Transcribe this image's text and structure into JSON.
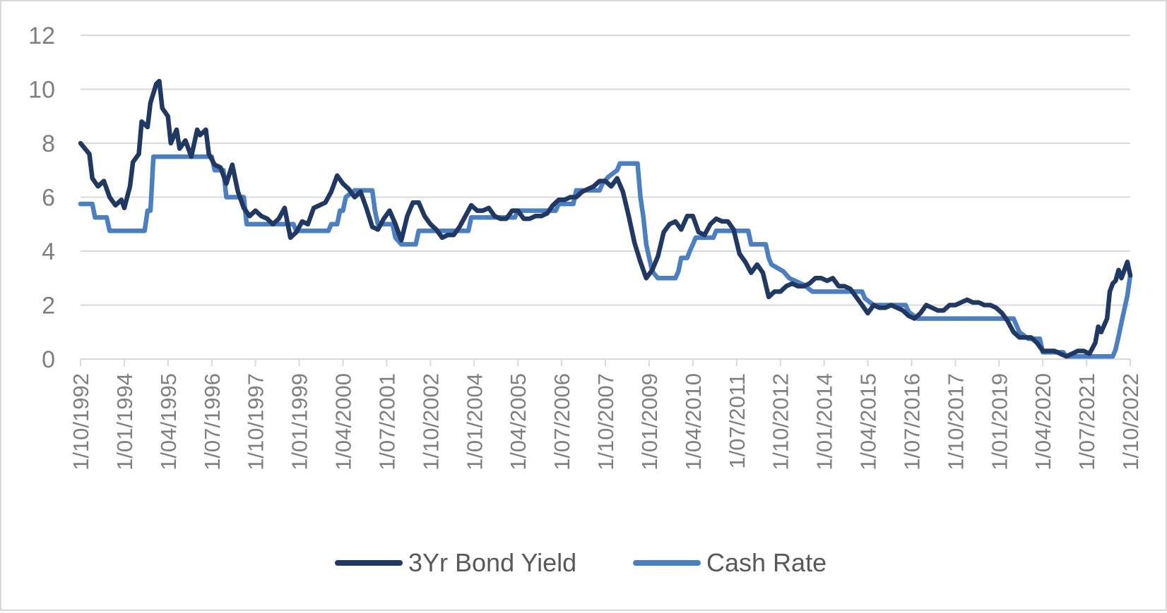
{
  "chart_data": {
    "type": "line",
    "title": "",
    "xlabel": "",
    "ylabel": "",
    "x_range": [
      "1992-10-01",
      "2022-10-01"
    ],
    "ylim": [
      0,
      12
    ],
    "y_ticks": [
      "0",
      "2",
      "4",
      "6",
      "8",
      "10",
      "12"
    ],
    "x_tick_labels": [
      "1/10/1992",
      "1/01/1994",
      "1/04/1995",
      "1/07/1996",
      "1/10/1997",
      "1/01/1999",
      "1/04/2000",
      "1/07/2001",
      "1/10/2002",
      "1/01/2004",
      "1/04/2005",
      "1/07/2006",
      "1/10/2007",
      "1/01/2009",
      "1/04/2010",
      "1/07/2011",
      "1/10/2012",
      "1/01/2014",
      "1/04/2015",
      "1/07/2016",
      "1/10/2017",
      "1/01/2019",
      "1/04/2020",
      "1/07/2021",
      "1/10/2022"
    ],
    "grid": true,
    "legend_position": "bottom",
    "series": [
      {
        "name": "3Yr Bond Yield",
        "color": "#1f3864",
        "points": [
          [
            "1992-10-01",
            8.0
          ],
          [
            "1993-01-01",
            7.6
          ],
          [
            "1993-02-01",
            6.7
          ],
          [
            "1993-04-01",
            6.4
          ],
          [
            "1993-06-01",
            6.6
          ],
          [
            "1993-08-01",
            6.0
          ],
          [
            "1993-10-01",
            5.7
          ],
          [
            "1993-12-01",
            5.9
          ],
          [
            "1994-01-01",
            5.6
          ],
          [
            "1994-03-01",
            6.4
          ],
          [
            "1994-04-01",
            7.3
          ],
          [
            "1994-06-01",
            7.6
          ],
          [
            "1994-07-01",
            8.8
          ],
          [
            "1994-09-01",
            8.6
          ],
          [
            "1994-10-01",
            9.5
          ],
          [
            "1994-12-01",
            10.2
          ],
          [
            "1995-01-01",
            10.3
          ],
          [
            "1995-02-01",
            9.3
          ],
          [
            "1995-04-01",
            9.0
          ],
          [
            "1995-05-01",
            8.0
          ],
          [
            "1995-07-01",
            8.5
          ],
          [
            "1995-08-01",
            7.8
          ],
          [
            "1995-10-01",
            8.1
          ],
          [
            "1995-12-01",
            7.5
          ],
          [
            "1996-02-01",
            8.5
          ],
          [
            "1996-03-01",
            8.3
          ],
          [
            "1996-05-01",
            8.5
          ],
          [
            "1996-06-01",
            7.6
          ],
          [
            "1996-08-01",
            7.2
          ],
          [
            "1996-10-01",
            7.1
          ],
          [
            "1996-12-01",
            6.5
          ],
          [
            "1997-02-01",
            7.2
          ],
          [
            "1997-04-01",
            6.2
          ],
          [
            "1997-06-01",
            5.6
          ],
          [
            "1997-08-01",
            5.3
          ],
          [
            "1997-10-01",
            5.5
          ],
          [
            "1997-12-01",
            5.3
          ],
          [
            "1998-02-01",
            5.2
          ],
          [
            "1998-04-01",
            5.0
          ],
          [
            "1998-06-01",
            5.2
          ],
          [
            "1998-08-01",
            5.6
          ],
          [
            "1998-10-01",
            4.5
          ],
          [
            "1998-12-01",
            4.7
          ],
          [
            "1999-02-01",
            5.1
          ],
          [
            "1999-04-01",
            5.0
          ],
          [
            "1999-06-01",
            5.6
          ],
          [
            "1999-08-01",
            5.7
          ],
          [
            "1999-10-01",
            5.8
          ],
          [
            "1999-12-01",
            6.2
          ],
          [
            "2000-02-01",
            6.8
          ],
          [
            "2000-04-01",
            6.5
          ],
          [
            "2000-06-01",
            6.3
          ],
          [
            "2000-08-01",
            6.0
          ],
          [
            "2000-10-01",
            6.2
          ],
          [
            "2000-12-01",
            5.6
          ],
          [
            "2001-02-01",
            4.9
          ],
          [
            "2001-04-01",
            4.8
          ],
          [
            "2001-06-01",
            5.2
          ],
          [
            "2001-08-01",
            5.5
          ],
          [
            "2001-10-01",
            5.0
          ],
          [
            "2001-12-01",
            4.4
          ],
          [
            "2002-02-01",
            5.3
          ],
          [
            "2002-04-01",
            5.8
          ],
          [
            "2002-06-01",
            5.8
          ],
          [
            "2002-08-01",
            5.3
          ],
          [
            "2002-10-01",
            5.0
          ],
          [
            "2002-12-01",
            4.8
          ],
          [
            "2003-02-01",
            4.5
          ],
          [
            "2003-04-01",
            4.6
          ],
          [
            "2003-06-01",
            4.6
          ],
          [
            "2003-08-01",
            4.9
          ],
          [
            "2003-10-01",
            5.3
          ],
          [
            "2003-12-01",
            5.7
          ],
          [
            "2004-02-01",
            5.5
          ],
          [
            "2004-04-01",
            5.5
          ],
          [
            "2004-06-01",
            5.6
          ],
          [
            "2004-08-01",
            5.3
          ],
          [
            "2004-10-01",
            5.2
          ],
          [
            "2004-12-01",
            5.2
          ],
          [
            "2005-02-01",
            5.5
          ],
          [
            "2005-04-01",
            5.5
          ],
          [
            "2005-06-01",
            5.2
          ],
          [
            "2005-08-01",
            5.2
          ],
          [
            "2005-10-01",
            5.3
          ],
          [
            "2005-12-01",
            5.3
          ],
          [
            "2006-02-01",
            5.4
          ],
          [
            "2006-04-01",
            5.7
          ],
          [
            "2006-06-01",
            5.9
          ],
          [
            "2006-08-01",
            5.9
          ],
          [
            "2006-10-01",
            6.0
          ],
          [
            "2006-12-01",
            6.0
          ],
          [
            "2007-02-01",
            6.2
          ],
          [
            "2007-04-01",
            6.3
          ],
          [
            "2007-06-01",
            6.4
          ],
          [
            "2007-08-01",
            6.6
          ],
          [
            "2007-10-01",
            6.6
          ],
          [
            "2007-12-01",
            6.4
          ],
          [
            "2008-02-01",
            6.7
          ],
          [
            "2008-04-01",
            6.2
          ],
          [
            "2008-06-01",
            5.3
          ],
          [
            "2008-08-01",
            4.3
          ],
          [
            "2008-10-01",
            3.6
          ],
          [
            "2008-12-01",
            3.0
          ],
          [
            "2009-02-01",
            3.3
          ],
          [
            "2009-04-01",
            3.8
          ],
          [
            "2009-06-01",
            4.7
          ],
          [
            "2009-08-01",
            5.0
          ],
          [
            "2009-10-01",
            5.1
          ],
          [
            "2009-12-01",
            4.8
          ],
          [
            "2010-02-01",
            5.3
          ],
          [
            "2010-04-01",
            5.3
          ],
          [
            "2010-06-01",
            4.7
          ],
          [
            "2010-08-01",
            4.6
          ],
          [
            "2010-10-01",
            5.0
          ],
          [
            "2010-12-01",
            5.2
          ],
          [
            "2011-02-01",
            5.1
          ],
          [
            "2011-04-01",
            5.1
          ],
          [
            "2011-06-01",
            4.8
          ],
          [
            "2011-08-01",
            3.9
          ],
          [
            "2011-10-01",
            3.6
          ],
          [
            "2011-12-01",
            3.2
          ],
          [
            "2012-02-01",
            3.5
          ],
          [
            "2012-04-01",
            3.2
          ],
          [
            "2012-06-01",
            2.3
          ],
          [
            "2012-08-01",
            2.5
          ],
          [
            "2012-10-01",
            2.5
          ],
          [
            "2012-12-01",
            2.7
          ],
          [
            "2013-02-01",
            2.8
          ],
          [
            "2013-04-01",
            2.7
          ],
          [
            "2013-06-01",
            2.7
          ],
          [
            "2013-08-01",
            2.8
          ],
          [
            "2013-10-01",
            3.0
          ],
          [
            "2013-12-01",
            3.0
          ],
          [
            "2014-02-01",
            2.9
          ],
          [
            "2014-04-01",
            3.0
          ],
          [
            "2014-06-01",
            2.7
          ],
          [
            "2014-08-01",
            2.7
          ],
          [
            "2014-10-01",
            2.6
          ],
          [
            "2014-12-01",
            2.3
          ],
          [
            "2015-02-01",
            2.0
          ],
          [
            "2015-04-01",
            1.7
          ],
          [
            "2015-06-01",
            2.0
          ],
          [
            "2015-08-01",
            1.9
          ],
          [
            "2015-10-01",
            1.9
          ],
          [
            "2015-12-01",
            2.0
          ],
          [
            "2016-02-01",
            1.9
          ],
          [
            "2016-04-01",
            1.8
          ],
          [
            "2016-06-01",
            1.6
          ],
          [
            "2016-08-01",
            1.5
          ],
          [
            "2016-10-01",
            1.7
          ],
          [
            "2016-12-01",
            2.0
          ],
          [
            "2017-02-01",
            1.9
          ],
          [
            "2017-04-01",
            1.8
          ],
          [
            "2017-06-01",
            1.8
          ],
          [
            "2017-08-01",
            2.0
          ],
          [
            "2017-10-01",
            2.0
          ],
          [
            "2017-12-01",
            2.1
          ],
          [
            "2018-02-01",
            2.2
          ],
          [
            "2018-04-01",
            2.1
          ],
          [
            "2018-06-01",
            2.1
          ],
          [
            "2018-08-01",
            2.0
          ],
          [
            "2018-10-01",
            2.0
          ],
          [
            "2018-12-01",
            1.9
          ],
          [
            "2019-02-01",
            1.7
          ],
          [
            "2019-04-01",
            1.4
          ],
          [
            "2019-06-01",
            1.0
          ],
          [
            "2019-08-01",
            0.8
          ],
          [
            "2019-10-01",
            0.8
          ],
          [
            "2019-12-01",
            0.8
          ],
          [
            "2020-02-01",
            0.6
          ],
          [
            "2020-04-01",
            0.3
          ],
          [
            "2020-06-01",
            0.3
          ],
          [
            "2020-08-01",
            0.3
          ],
          [
            "2020-10-01",
            0.2
          ],
          [
            "2020-12-01",
            0.1
          ],
          [
            "2021-02-01",
            0.2
          ],
          [
            "2021-04-01",
            0.3
          ],
          [
            "2021-06-01",
            0.3
          ],
          [
            "2021-08-01",
            0.2
          ],
          [
            "2021-10-01",
            0.6
          ],
          [
            "2021-11-01",
            1.2
          ],
          [
            "2021-12-01",
            1.0
          ],
          [
            "2022-02-01",
            1.5
          ],
          [
            "2022-03-01",
            2.5
          ],
          [
            "2022-04-01",
            2.8
          ],
          [
            "2022-05-01",
            2.9
          ],
          [
            "2022-06-01",
            3.3
          ],
          [
            "2022-07-01",
            3.0
          ],
          [
            "2022-08-01",
            3.3
          ],
          [
            "2022-09-01",
            3.6
          ],
          [
            "2022-10-01",
            3.1
          ]
        ]
      },
      {
        "name": "Cash Rate",
        "color": "#4a7fc4",
        "points": [
          [
            "1992-10-01",
            5.75
          ],
          [
            "1993-02-01",
            5.75
          ],
          [
            "1993-03-01",
            5.25
          ],
          [
            "1993-07-01",
            5.25
          ],
          [
            "1993-08-01",
            4.75
          ],
          [
            "1994-08-01",
            4.75
          ],
          [
            "1994-09-01",
            5.5
          ],
          [
            "1994-10-01",
            5.5
          ],
          [
            "1994-11-01",
            7.5
          ],
          [
            "1996-07-01",
            7.5
          ],
          [
            "1996-08-01",
            7.0
          ],
          [
            "1996-11-01",
            7.0
          ],
          [
            "1996-12-01",
            6.0
          ],
          [
            "1997-06-01",
            6.0
          ],
          [
            "1997-07-01",
            5.0
          ],
          [
            "1998-11-01",
            5.0
          ],
          [
            "1998-12-01",
            4.75
          ],
          [
            "1999-11-01",
            4.75
          ],
          [
            "1999-12-01",
            5.0
          ],
          [
            "2000-02-01",
            5.0
          ],
          [
            "2000-03-01",
            5.5
          ],
          [
            "2000-04-01",
            5.5
          ],
          [
            "2000-05-01",
            6.0
          ],
          [
            "2000-08-01",
            6.25
          ],
          [
            "2001-02-01",
            6.25
          ],
          [
            "2001-03-01",
            5.5
          ],
          [
            "2001-04-01",
            5.0
          ],
          [
            "2001-09-01",
            5.0
          ],
          [
            "2001-10-01",
            4.5
          ],
          [
            "2001-12-01",
            4.25
          ],
          [
            "2002-05-01",
            4.25
          ],
          [
            "2002-06-01",
            4.75
          ],
          [
            "2003-11-01",
            4.75
          ],
          [
            "2003-12-01",
            5.25
          ],
          [
            "2005-03-01",
            5.25
          ],
          [
            "2005-04-01",
            5.5
          ],
          [
            "2006-05-01",
            5.5
          ],
          [
            "2006-06-01",
            5.75
          ],
          [
            "2006-11-01",
            5.75
          ],
          [
            "2006-12-01",
            6.25
          ],
          [
            "2007-08-01",
            6.25
          ],
          [
            "2007-09-01",
            6.5
          ],
          [
            "2007-11-01",
            6.75
          ],
          [
            "2008-02-01",
            7.0
          ],
          [
            "2008-03-01",
            7.25
          ],
          [
            "2008-09-01",
            7.25
          ],
          [
            "2008-10-01",
            6.0
          ],
          [
            "2008-11-01",
            5.25
          ],
          [
            "2008-12-01",
            4.25
          ],
          [
            "2009-02-01",
            3.25
          ],
          [
            "2009-04-01",
            3.0
          ],
          [
            "2009-10-01",
            3.0
          ],
          [
            "2009-11-01",
            3.25
          ],
          [
            "2009-12-01",
            3.75
          ],
          [
            "2010-02-01",
            3.75
          ],
          [
            "2010-03-01",
            4.0
          ],
          [
            "2010-04-01",
            4.25
          ],
          [
            "2010-05-01",
            4.5
          ],
          [
            "2010-11-01",
            4.5
          ],
          [
            "2010-12-01",
            4.75
          ],
          [
            "2011-11-01",
            4.75
          ],
          [
            "2011-12-01",
            4.25
          ],
          [
            "2012-05-01",
            4.25
          ],
          [
            "2012-06-01",
            3.75
          ],
          [
            "2012-07-01",
            3.5
          ],
          [
            "2012-11-01",
            3.25
          ],
          [
            "2013-01-01",
            3.0
          ],
          [
            "2013-06-01",
            2.75
          ],
          [
            "2013-09-01",
            2.5
          ],
          [
            "2015-02-01",
            2.5
          ],
          [
            "2015-03-01",
            2.25
          ],
          [
            "2015-06-01",
            2.0
          ],
          [
            "2016-05-01",
            2.0
          ],
          [
            "2016-06-01",
            1.75
          ],
          [
            "2016-09-01",
            1.5
          ],
          [
            "2019-06-01",
            1.5
          ],
          [
            "2019-07-01",
            1.25
          ],
          [
            "2019-08-01",
            1.0
          ],
          [
            "2019-11-01",
            0.75
          ],
          [
            "2020-03-01",
            0.75
          ],
          [
            "2020-04-01",
            0.25
          ],
          [
            "2020-11-01",
            0.25
          ],
          [
            "2020-12-01",
            0.1
          ],
          [
            "2022-04-01",
            0.1
          ],
          [
            "2022-05-01",
            0.35
          ],
          [
            "2022-06-01",
            0.85
          ],
          [
            "2022-07-01",
            1.35
          ],
          [
            "2022-08-01",
            1.85
          ],
          [
            "2022-09-01",
            2.35
          ],
          [
            "2022-10-01",
            3.1
          ]
        ]
      }
    ]
  }
}
